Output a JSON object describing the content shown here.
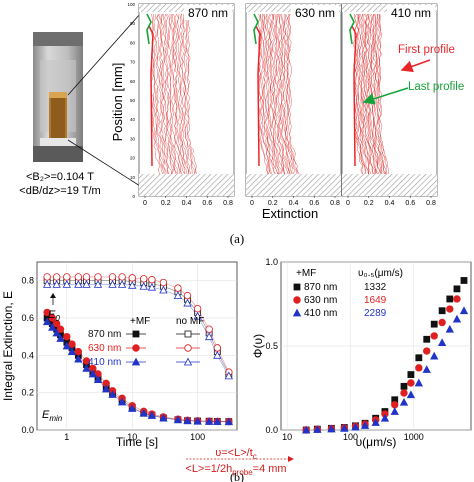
{
  "panel_a": {
    "label": "(a)",
    "wavelengths": [
      "870 nm",
      "630 nm",
      "410 nm"
    ],
    "y_axis_label": "Position [mm]",
    "y_ticks": [
      "0",
      "10",
      "20",
      "30",
      "40",
      "50",
      "60",
      "70",
      "80",
      "90",
      "100"
    ],
    "x_ticks": [
      "0",
      "0.2",
      "0.4",
      "0.6",
      "0.8"
    ],
    "x_axis_label": "Extinction",
    "first_profile_label": "First profile",
    "last_profile_label": "Last profile",
    "field_caption_1": "<B₂>=0.104 T",
    "field_caption_2": "<dB/dz>=19 T/m",
    "colors": {
      "first_profile": "#e8262a",
      "last_profile": "#18a33a",
      "profiles": "#d92b2b",
      "hatch": "#9a9a9a"
    }
  },
  "panel_b": {
    "label": "(b)",
    "formula_1": "υ=<L>/t",
    "formula_1_sub": "c",
    "formula_2_a": "<L>=1/2h",
    "formula_2_sub": "probe",
    "formula_2_b": "=4 mm",
    "formula_color": "#d32020"
  },
  "chart_data": [
    {
      "type": "scatter",
      "title": "",
      "xlabel": "Time [s]",
      "ylabel": "Integral Extinction, E",
      "xscale": "log",
      "xlim": [
        0.35,
        400
      ],
      "ylim": [
        0.0,
        0.9
      ],
      "x_ticks": [
        "1",
        "10",
        "100"
      ],
      "y_ticks": [
        "0.0",
        "0.2",
        "0.4",
        "0.6",
        "0.8"
      ],
      "annotations": {
        "e0": "E",
        "e0_sub": "0",
        "emin": "E",
        "emin_sub": "min"
      },
      "legend_header": [
        "+MF",
        "no MF"
      ],
      "legend_placement": "center",
      "series": [
        {
          "name": "870 nm",
          "color": "#111111",
          "marker": "square",
          "x": [
            0.5,
            0.6,
            0.7,
            0.8,
            1,
            1.2,
            1.5,
            2,
            2.5,
            3,
            4,
            5,
            7,
            10,
            15,
            20,
            30,
            50,
            70,
            100,
            150,
            200,
            300
          ],
          "y": [
            0.6,
            0.57,
            0.54,
            0.51,
            0.47,
            0.44,
            0.4,
            0.35,
            0.31,
            0.28,
            0.23,
            0.2,
            0.16,
            0.12,
            0.09,
            0.08,
            0.065,
            0.055,
            0.05,
            0.048,
            0.047,
            0.046,
            0.045
          ]
        },
        {
          "name": "630 nm",
          "color": "#e02020",
          "marker": "circle",
          "x": [
            0.5,
            0.6,
            0.7,
            0.8,
            1,
            1.2,
            1.5,
            2,
            2.5,
            3,
            4,
            5,
            7,
            10,
            15,
            20,
            30,
            50,
            70,
            100,
            150,
            200,
            300
          ],
          "y": [
            0.63,
            0.6,
            0.57,
            0.54,
            0.5,
            0.46,
            0.42,
            0.37,
            0.33,
            0.3,
            0.25,
            0.21,
            0.17,
            0.13,
            0.1,
            0.085,
            0.07,
            0.058,
            0.052,
            0.049,
            0.047,
            0.046,
            0.045
          ]
        },
        {
          "name": "410 nm",
          "color": "#2034c8",
          "marker": "triangle",
          "x": [
            0.5,
            0.6,
            0.7,
            0.8,
            1,
            1.2,
            1.5,
            2,
            2.5,
            3,
            4,
            5,
            7,
            10,
            15,
            20,
            30,
            50,
            70,
            100,
            150,
            200,
            300
          ],
          "y": [
            0.58,
            0.55,
            0.52,
            0.49,
            0.45,
            0.42,
            0.38,
            0.33,
            0.3,
            0.27,
            0.22,
            0.19,
            0.15,
            0.115,
            0.09,
            0.078,
            0.064,
            0.055,
            0.05,
            0.047,
            0.046,
            0.045,
            0.044
          ]
        }
      ],
      "no_mf_series": [
        {
          "name": "870 nm",
          "color": "#111111",
          "marker": "open-square",
          "x": [
            0.5,
            0.7,
            1,
            1.5,
            2,
            3,
            5,
            7,
            10,
            15,
            20,
            30,
            50,
            70,
            100,
            150,
            200,
            300
          ],
          "y": [
            0.8,
            0.8,
            0.8,
            0.8,
            0.8,
            0.8,
            0.8,
            0.8,
            0.795,
            0.79,
            0.785,
            0.77,
            0.74,
            0.7,
            0.63,
            0.52,
            0.42,
            0.3
          ]
        },
        {
          "name": "630 nm",
          "color": "#e02020",
          "marker": "open-circle",
          "x": [
            0.5,
            0.7,
            1,
            1.5,
            2,
            3,
            5,
            7,
            10,
            15,
            20,
            30,
            50,
            70,
            100,
            150,
            200,
            300
          ],
          "y": [
            0.82,
            0.82,
            0.82,
            0.82,
            0.82,
            0.82,
            0.82,
            0.82,
            0.815,
            0.81,
            0.805,
            0.79,
            0.76,
            0.72,
            0.65,
            0.54,
            0.44,
            0.31
          ]
        },
        {
          "name": "410 nm",
          "color": "#2034c8",
          "marker": "open-triangle",
          "x": [
            0.5,
            0.7,
            1,
            1.5,
            2,
            3,
            5,
            7,
            10,
            15,
            20,
            30,
            50,
            70,
            100,
            150,
            200,
            300
          ],
          "y": [
            0.78,
            0.78,
            0.78,
            0.78,
            0.78,
            0.78,
            0.78,
            0.78,
            0.775,
            0.77,
            0.765,
            0.75,
            0.72,
            0.68,
            0.61,
            0.5,
            0.4,
            0.29
          ]
        }
      ]
    },
    {
      "type": "scatter",
      "title": "",
      "xlabel": "υ(μm/s)",
      "ylabel": "Φ(υ)",
      "xscale": "log",
      "xlim": [
        8,
        8000
      ],
      "ylim": [
        0.0,
        1.0
      ],
      "x_ticks": [
        "10",
        "100",
        "1000"
      ],
      "y_ticks": [
        "0.0",
        "0.5",
        "1.0"
      ],
      "legend_header": [
        "+MF",
        "υ₀.₅(μm/s)"
      ],
      "legend_placement": "top-left",
      "series": [
        {
          "name": "870 nm",
          "color": "#111111",
          "marker": "square",
          "label_value": "1332",
          "x": [
            20,
            30,
            50,
            80,
            120,
            170,
            250,
            350,
            500,
            700,
            900,
            1200,
            1600,
            2100,
            2800,
            3700,
            4800,
            6200
          ],
          "y": [
            0.0,
            0.005,
            0.01,
            0.015,
            0.025,
            0.04,
            0.07,
            0.11,
            0.18,
            0.26,
            0.33,
            0.43,
            0.54,
            0.63,
            0.71,
            0.78,
            0.84,
            0.89
          ]
        },
        {
          "name": "630 nm",
          "color": "#e02020",
          "marker": "circle",
          "label_value": "1649",
          "x": [
            20,
            30,
            50,
            80,
            120,
            170,
            250,
            350,
            500,
            700,
            900,
            1200,
            1600,
            2100,
            2800,
            3700,
            4800
          ],
          "y": [
            0.0,
            0.004,
            0.008,
            0.013,
            0.022,
            0.035,
            0.06,
            0.095,
            0.15,
            0.22,
            0.28,
            0.37,
            0.47,
            0.56,
            0.64,
            0.72,
            0.78
          ]
        },
        {
          "name": "410 nm",
          "color": "#2034c8",
          "marker": "triangle",
          "label_value": "2289",
          "x": [
            20,
            30,
            50,
            80,
            120,
            170,
            250,
            350,
            500,
            700,
            900,
            1200,
            1600,
            2100,
            2800,
            3700,
            4800,
            6200
          ],
          "y": [
            0.0,
            0.003,
            0.006,
            0.01,
            0.017,
            0.027,
            0.045,
            0.07,
            0.11,
            0.165,
            0.21,
            0.28,
            0.36,
            0.44,
            0.52,
            0.6,
            0.66,
            0.71
          ]
        }
      ]
    }
  ]
}
